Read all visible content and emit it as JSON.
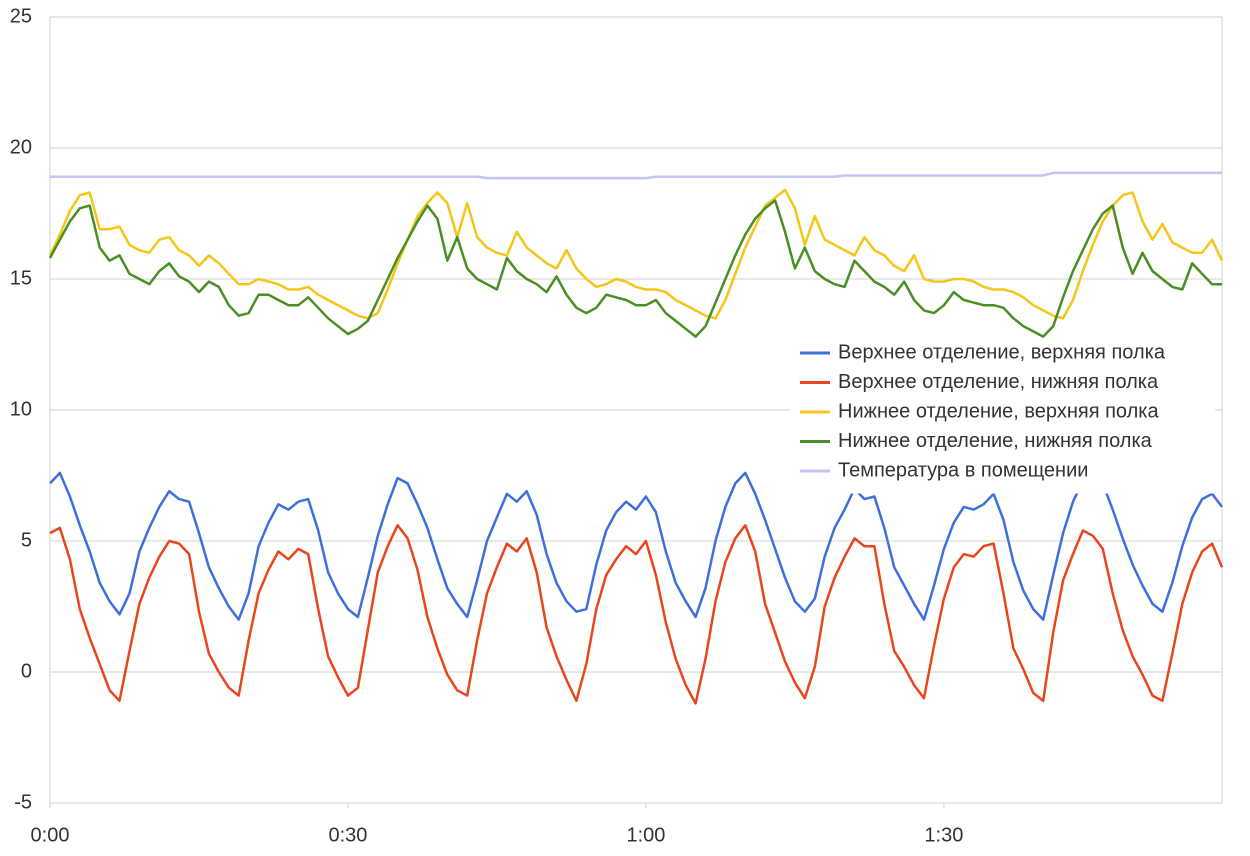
{
  "chart_data": {
    "type": "line",
    "x": [
      0,
      1,
      2,
      3,
      4,
      5,
      6,
      7,
      8,
      9,
      10,
      11,
      12,
      13,
      14,
      15,
      16,
      17,
      18,
      19,
      20,
      21,
      22,
      23,
      24,
      25,
      26,
      27,
      28,
      29,
      30,
      31,
      32,
      33,
      34,
      35,
      36,
      37,
      38,
      39,
      40,
      41,
      42,
      43,
      44,
      45,
      46,
      47,
      48,
      49,
      50,
      51,
      52,
      53,
      54,
      55,
      56,
      57,
      58,
      59,
      60,
      61,
      62,
      63,
      64,
      65,
      66,
      67,
      68,
      69,
      70,
      71,
      72,
      73,
      74,
      75,
      76,
      77,
      78,
      79,
      80,
      81,
      82,
      83,
      84,
      85,
      86,
      87,
      88,
      89,
      90,
      91,
      92,
      93,
      94,
      95,
      96,
      97,
      98,
      99,
      100,
      101,
      102,
      103,
      104,
      105,
      106,
      107,
      108,
      109,
      110,
      111,
      112,
      113,
      114,
      115,
      116,
      117,
      118
    ],
    "series": [
      {
        "name": "Верхнее отделение, верхняя полка",
        "color": "#3f6fdc",
        "values": [
          7.2,
          7.6,
          6.7,
          5.6,
          4.6,
          3.4,
          2.7,
          2.2,
          3.0,
          4.6,
          5.5,
          6.3,
          6.9,
          6.6,
          6.5,
          5.3,
          4.0,
          3.2,
          2.5,
          2.0,
          3.0,
          4.8,
          5.7,
          6.4,
          6.2,
          6.5,
          6.6,
          5.4,
          3.8,
          3.0,
          2.4,
          2.1,
          3.6,
          5.2,
          6.4,
          7.4,
          7.2,
          6.4,
          5.5,
          4.3,
          3.2,
          2.6,
          2.1,
          3.5,
          5.0,
          5.9,
          6.8,
          6.5,
          6.9,
          6.0,
          4.5,
          3.4,
          2.7,
          2.3,
          2.4,
          4.1,
          5.4,
          6.1,
          6.5,
          6.2,
          6.7,
          6.1,
          4.6,
          3.4,
          2.7,
          2.1,
          3.2,
          5.0,
          6.3,
          7.2,
          7.6,
          6.8,
          5.8,
          4.7,
          3.6,
          2.7,
          2.3,
          2.8,
          4.4,
          5.5,
          6.2,
          7.0,
          6.6,
          6.7,
          5.5,
          4.0,
          3.3,
          2.6,
          2.0,
          3.3,
          4.7,
          5.7,
          6.3,
          6.2,
          6.4,
          6.8,
          5.8,
          4.2,
          3.1,
          2.4,
          2.0,
          3.7,
          5.3,
          6.5,
          7.3,
          7.6,
          7.2,
          6.2,
          5.1,
          4.1,
          3.3,
          2.6,
          2.3,
          3.4,
          4.8,
          5.9,
          6.6,
          6.8,
          6.3
        ]
      },
      {
        "name": "Верхнее отделение, нижняя полка",
        "color": "#e8461c",
        "values": [
          5.3,
          5.5,
          4.3,
          2.4,
          1.3,
          0.3,
          -0.7,
          -1.1,
          0.8,
          2.6,
          3.6,
          4.4,
          5.0,
          4.9,
          4.5,
          2.3,
          0.7,
          0.0,
          -0.6,
          -0.9,
          1.2,
          3.0,
          3.9,
          4.6,
          4.3,
          4.7,
          4.5,
          2.4,
          0.6,
          -0.2,
          -0.9,
          -0.6,
          1.6,
          3.8,
          4.8,
          5.6,
          5.1,
          3.9,
          2.1,
          0.9,
          -0.1,
          -0.7,
          -0.9,
          1.2,
          3.0,
          4.0,
          4.9,
          4.6,
          5.1,
          3.8,
          1.7,
          0.6,
          -0.3,
          -1.1,
          0.3,
          2.4,
          3.7,
          4.3,
          4.8,
          4.5,
          5.0,
          3.7,
          1.9,
          0.5,
          -0.5,
          -1.2,
          0.5,
          2.7,
          4.2,
          5.1,
          5.6,
          4.6,
          2.6,
          1.5,
          0.4,
          -0.4,
          -1.0,
          0.2,
          2.5,
          3.6,
          4.4,
          5.1,
          4.8,
          4.8,
          2.6,
          0.8,
          0.2,
          -0.5,
          -1.0,
          1.0,
          2.8,
          4.0,
          4.5,
          4.4,
          4.8,
          4.9,
          3.0,
          0.9,
          0.1,
          -0.8,
          -1.1,
          1.5,
          3.5,
          4.5,
          5.4,
          5.2,
          4.7,
          3.0,
          1.6,
          0.6,
          -0.1,
          -0.9,
          -1.1,
          0.7,
          2.6,
          3.8,
          4.6,
          4.9,
          4.0
        ]
      },
      {
        "name": "Нижнее отделение, верхняя полка",
        "color": "#f5c518",
        "values": [
          15.9,
          16.7,
          17.6,
          18.2,
          18.3,
          16.9,
          16.9,
          17.0,
          16.3,
          16.1,
          16.0,
          16.5,
          16.6,
          16.1,
          15.9,
          15.5,
          15.9,
          15.6,
          15.2,
          14.8,
          14.8,
          15.0,
          14.9,
          14.8,
          14.6,
          14.6,
          14.7,
          14.4,
          14.2,
          14.0,
          13.8,
          13.6,
          13.5,
          13.7,
          14.6,
          15.6,
          16.5,
          17.4,
          17.9,
          18.3,
          17.9,
          16.6,
          17.9,
          16.6,
          16.2,
          16.0,
          15.9,
          16.8,
          16.2,
          15.9,
          15.6,
          15.4,
          16.1,
          15.4,
          15.0,
          14.7,
          14.8,
          15.0,
          14.9,
          14.7,
          14.6,
          14.6,
          14.5,
          14.2,
          14.0,
          13.8,
          13.6,
          13.5,
          14.2,
          15.2,
          16.2,
          17.0,
          17.8,
          18.1,
          18.4,
          17.7,
          16.3,
          17.4,
          16.5,
          16.3,
          16.1,
          15.9,
          16.6,
          16.1,
          15.9,
          15.5,
          15.3,
          15.9,
          15.0,
          14.9,
          14.9,
          15.0,
          15.0,
          14.9,
          14.7,
          14.6,
          14.6,
          14.5,
          14.3,
          14.0,
          13.8,
          13.6,
          13.5,
          14.2,
          15.3,
          16.3,
          17.2,
          17.8,
          18.2,
          18.3,
          17.2,
          16.5,
          17.1,
          16.4,
          16.2,
          16.0,
          16.0,
          16.5,
          15.7
        ]
      },
      {
        "name": "Нижнее отделение, нижняя полка",
        "color": "#4a8f23",
        "values": [
          15.8,
          16.5,
          17.2,
          17.7,
          17.8,
          16.2,
          15.7,
          15.9,
          15.2,
          15.0,
          14.8,
          15.3,
          15.6,
          15.1,
          14.9,
          14.5,
          14.9,
          14.7,
          14.0,
          13.6,
          13.7,
          14.4,
          14.4,
          14.2,
          14.0,
          14.0,
          14.3,
          13.9,
          13.5,
          13.2,
          12.9,
          13.1,
          13.4,
          14.2,
          15.0,
          15.8,
          16.5,
          17.2,
          17.8,
          17.3,
          15.7,
          16.6,
          15.4,
          15.0,
          14.8,
          14.6,
          15.8,
          15.3,
          15.0,
          14.8,
          14.5,
          15.1,
          14.4,
          13.9,
          13.7,
          13.9,
          14.4,
          14.3,
          14.2,
          14.0,
          14.0,
          14.2,
          13.7,
          13.4,
          13.1,
          12.8,
          13.2,
          14.1,
          15.0,
          15.9,
          16.7,
          17.3,
          17.7,
          18.0,
          16.8,
          15.4,
          16.2,
          15.3,
          15.0,
          14.8,
          14.7,
          15.7,
          15.3,
          14.9,
          14.7,
          14.4,
          14.9,
          14.2,
          13.8,
          13.7,
          14.0,
          14.5,
          14.2,
          14.1,
          14.0,
          14.0,
          13.9,
          13.5,
          13.2,
          13.0,
          12.8,
          13.2,
          14.3,
          15.3,
          16.1,
          16.9,
          17.5,
          17.8,
          16.2,
          15.2,
          16.0,
          15.3,
          15.0,
          14.7,
          14.6,
          15.6,
          15.2,
          14.8,
          14.8
        ]
      },
      {
        "name": "Температура в помещении",
        "color": "#c4c4f5",
        "values": [
          18.9,
          18.9,
          18.9,
          18.9,
          18.9,
          18.9,
          18.9,
          18.9,
          18.9,
          18.9,
          18.9,
          18.9,
          18.9,
          18.9,
          18.9,
          18.9,
          18.9,
          18.9,
          18.9,
          18.9,
          18.9,
          18.9,
          18.9,
          18.9,
          18.9,
          18.9,
          18.9,
          18.9,
          18.9,
          18.9,
          18.9,
          18.9,
          18.9,
          18.9,
          18.9,
          18.9,
          18.9,
          18.9,
          18.9,
          18.9,
          18.9,
          18.9,
          18.9,
          18.9,
          18.85,
          18.85,
          18.85,
          18.85,
          18.85,
          18.85,
          18.85,
          18.85,
          18.85,
          18.85,
          18.85,
          18.85,
          18.85,
          18.85,
          18.85,
          18.85,
          18.85,
          18.9,
          18.9,
          18.9,
          18.9,
          18.9,
          18.9,
          18.9,
          18.9,
          18.9,
          18.9,
          18.9,
          18.9,
          18.9,
          18.9,
          18.9,
          18.9,
          18.9,
          18.9,
          18.9,
          18.95,
          18.95,
          18.95,
          18.95,
          18.95,
          18.95,
          18.95,
          18.95,
          18.95,
          18.95,
          18.95,
          18.95,
          18.95,
          18.95,
          18.95,
          18.95,
          18.95,
          18.95,
          18.95,
          18.95,
          18.95,
          19.05,
          19.05,
          19.05,
          19.05,
          19.05,
          19.05,
          19.05,
          19.05,
          19.05,
          19.05,
          19.05,
          19.05,
          19.05,
          19.05,
          19.05,
          19.05,
          19.05,
          19.05
        ]
      }
    ],
    "xlim": [
      0,
      118
    ],
    "xticks": [
      {
        "value": 0,
        "label": "0:00"
      },
      {
        "value": 30,
        "label": "0:30"
      },
      {
        "value": 60,
        "label": "1:00"
      },
      {
        "value": 90,
        "label": "1:30"
      }
    ],
    "ylim": [
      -5,
      25
    ],
    "yticks": [
      -5,
      0,
      5,
      10,
      15,
      20,
      25
    ],
    "grid": true,
    "legend": "right"
  }
}
